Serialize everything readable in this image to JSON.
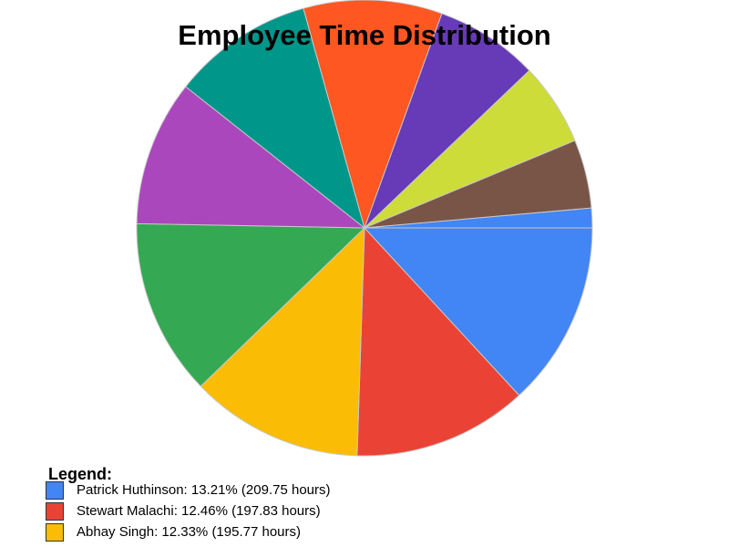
{
  "chart_data": {
    "type": "pie",
    "title": "Employee Time Distribution",
    "legend_title": "Legend:",
    "legend_position": "bottom-left",
    "slices": [
      {
        "label": "Patrick Huthinson",
        "percent": 13.21,
        "hours": 209.75,
        "color": "#4285F4"
      },
      {
        "label": "Stewart Malachi",
        "percent": 12.46,
        "hours": 197.83,
        "color": "#EA4335"
      },
      {
        "label": "Abhay Singh",
        "percent": 12.33,
        "hours": 195.77,
        "color": "#FBBC05"
      },
      {
        "label": "",
        "percent": 12.6,
        "hours": null,
        "color": "#34A853"
      },
      {
        "label": "",
        "percent": 10.4,
        "hours": null,
        "color": "#AB47BC"
      },
      {
        "label": "",
        "percent": 10.1,
        "hours": null,
        "color": "#00968A"
      },
      {
        "label": "",
        "percent": 9.9,
        "hours": null,
        "color": "#FF5722"
      },
      {
        "label": "",
        "percent": 7.4,
        "hours": null,
        "color": "#673AB7"
      },
      {
        "label": "",
        "percent": 5.9,
        "hours": null,
        "color": "#CDDC39"
      },
      {
        "label": "",
        "percent": 4.9,
        "hours": null,
        "color": "#795548"
      },
      {
        "label": "",
        "percent": 1.4,
        "hours": null,
        "color": "#4285F4"
      }
    ],
    "legend_items": [
      {
        "text": "Patrick Huthinson: 13.21% (209.75 hours)",
        "color": "#4285F4"
      },
      {
        "text": "Stewart Malachi: 12.46% (197.83 hours)",
        "color": "#EA4335"
      },
      {
        "text": "Abhay Singh: 12.33% (195.77 hours)",
        "color": "#FBBC05"
      }
    ]
  }
}
